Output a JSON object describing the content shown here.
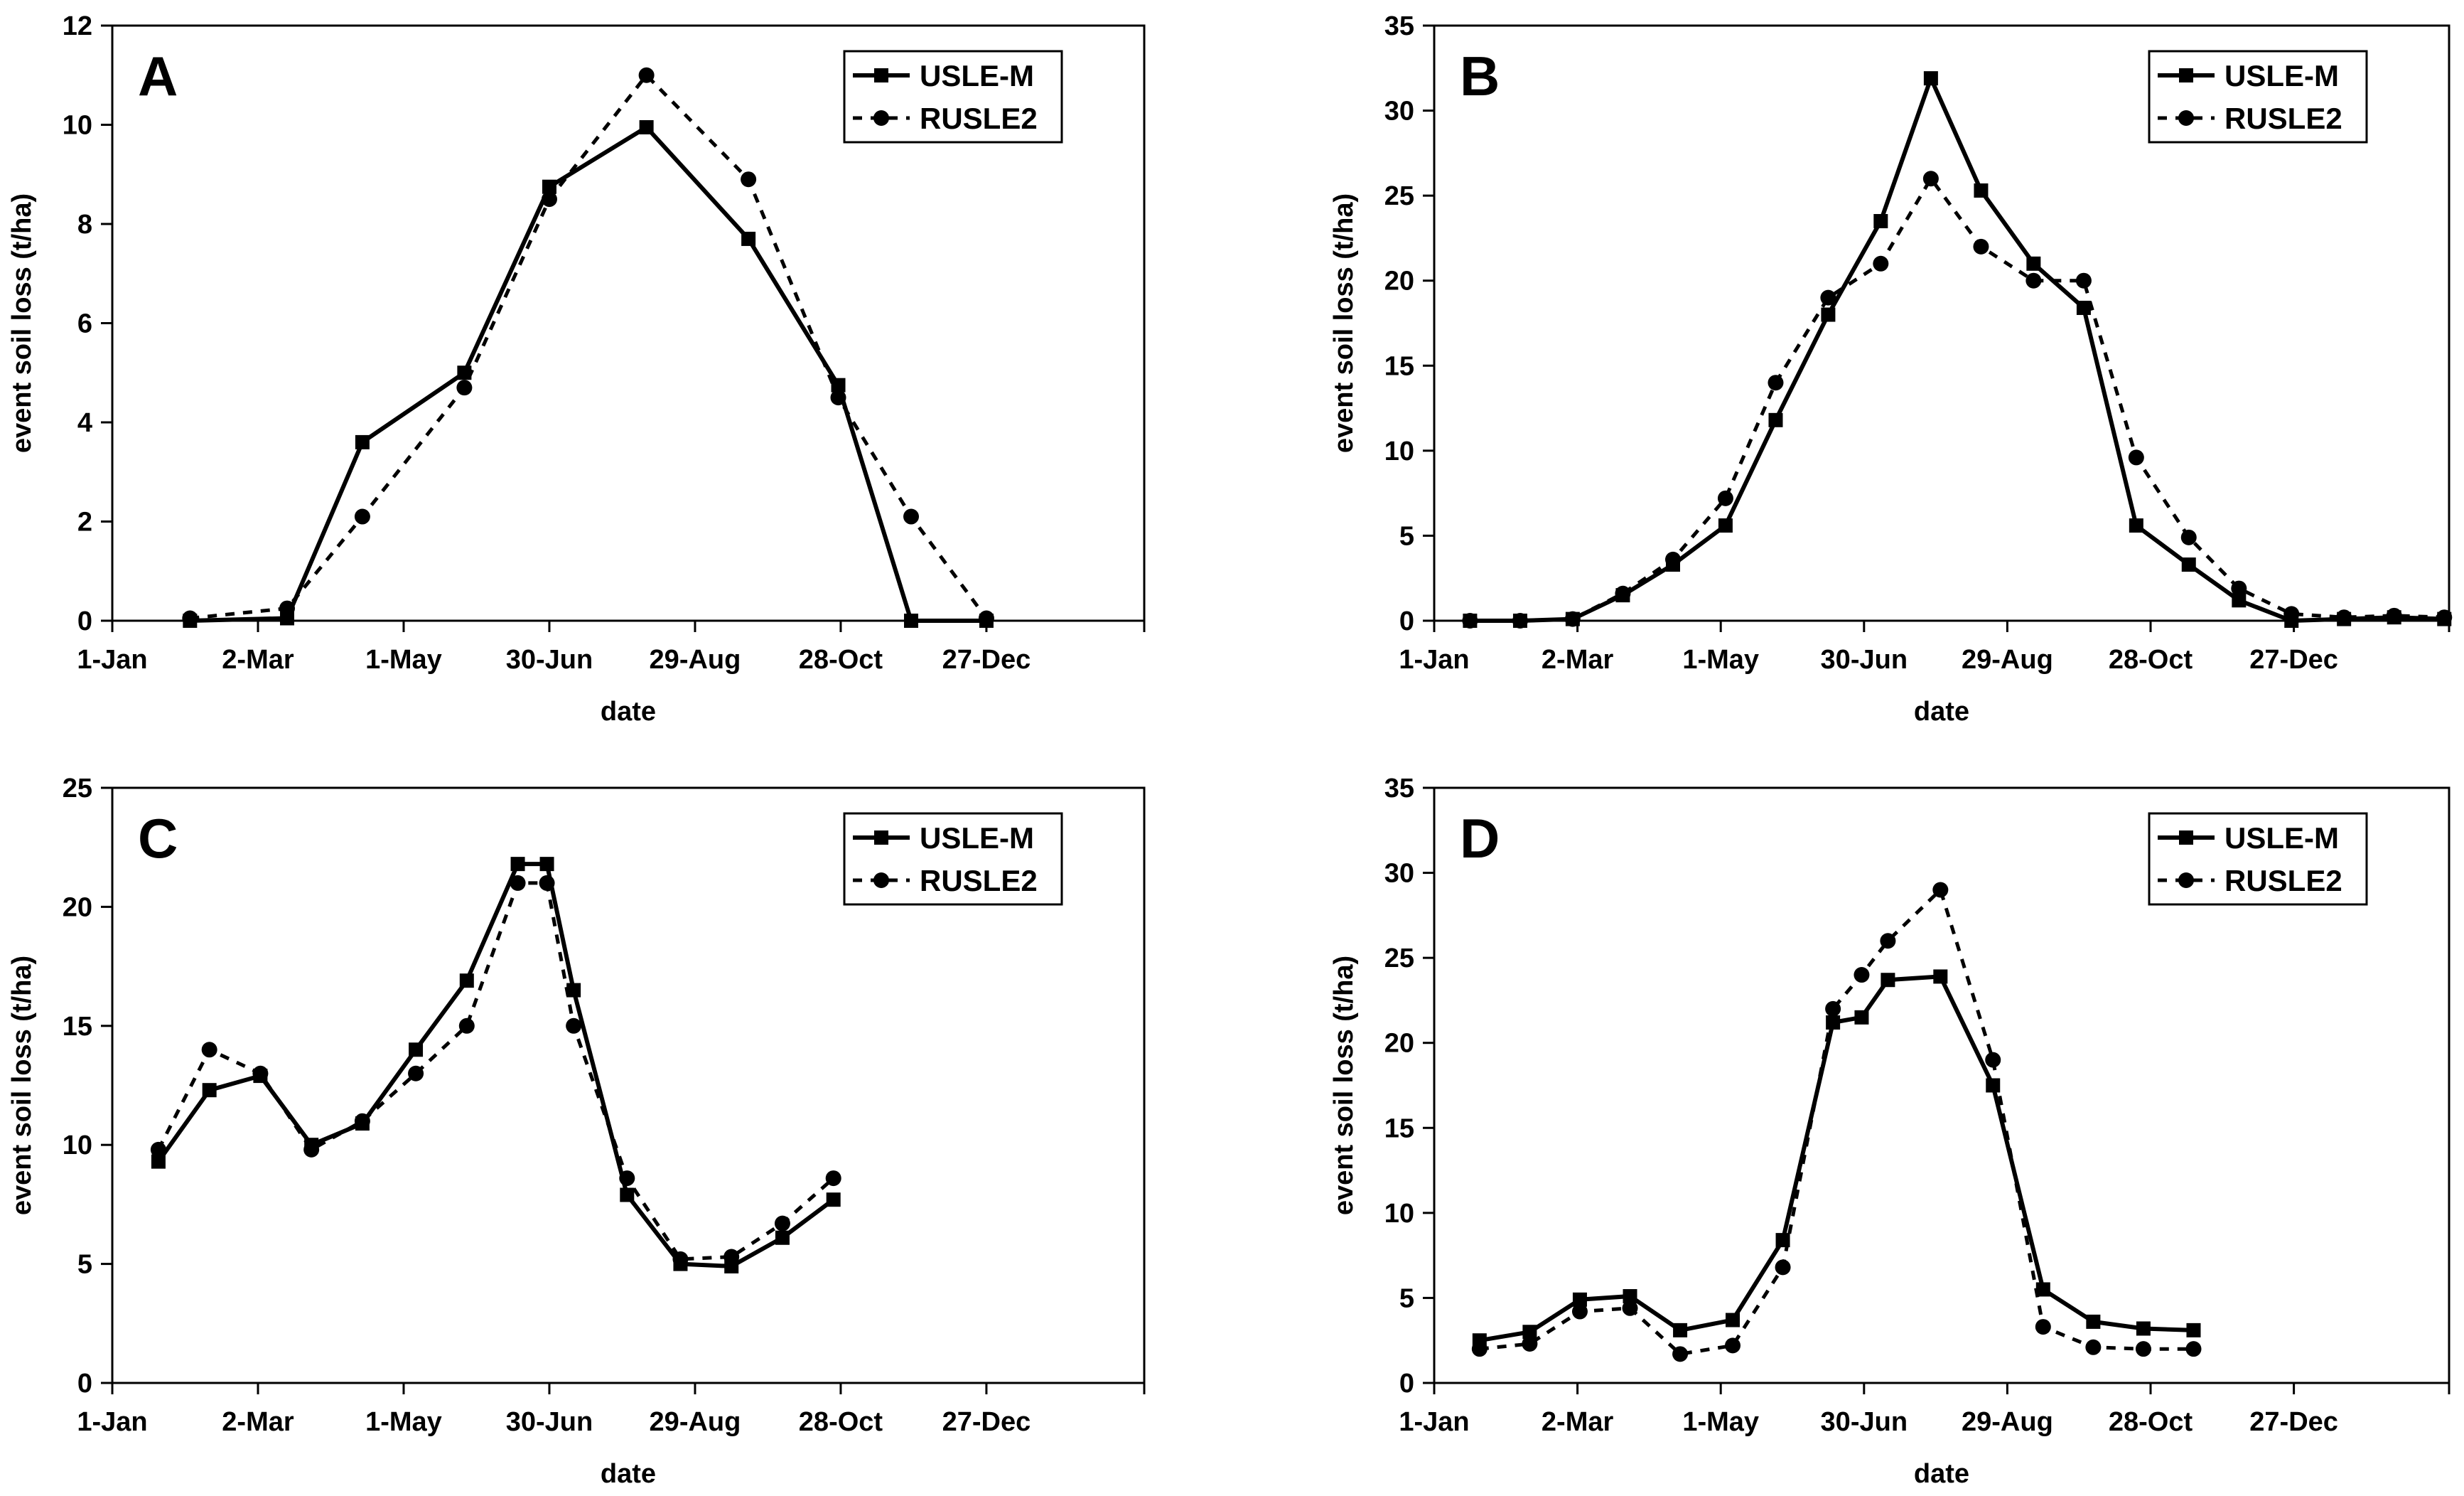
{
  "chart_data": [
    {
      "panel": "A",
      "type": "line",
      "xlabel": "date",
      "ylabel": "event soil loss (t/ha)",
      "ylim": [
        0,
        12
      ],
      "yticks": [
        0,
        2,
        4,
        6,
        8,
        10,
        12
      ],
      "xlim_days": [
        1,
        426
      ],
      "xticks": [
        {
          "label": "1-Jan",
          "day": 1
        },
        {
          "label": "2-Mar",
          "day": 61
        },
        {
          "label": "1-May",
          "day": 121
        },
        {
          "label": "30-Jun",
          "day": 181
        },
        {
          "label": "29-Aug",
          "day": 241
        },
        {
          "label": "28-Oct",
          "day": 301
        },
        {
          "label": "27-Dec",
          "day": 361
        }
      ],
      "legend_position": "top-right",
      "series": [
        {
          "name": "USLE-M",
          "marker": "square",
          "style": "solid",
          "x": [
            33,
            73,
            104,
            146,
            181,
            221,
            263,
            300,
            330,
            361
          ],
          "y": [
            0,
            0.05,
            3.6,
            5.0,
            8.75,
            9.95,
            7.7,
            4.75,
            0,
            0
          ]
        },
        {
          "name": "RUSLE2",
          "marker": "circle",
          "style": "dashed",
          "x": [
            33,
            73,
            104,
            146,
            181,
            221,
            263,
            300,
            330,
            361
          ],
          "y": [
            0.05,
            0.25,
            2.1,
            4.7,
            8.5,
            11.0,
            8.9,
            4.5,
            2.1,
            0.05
          ]
        }
      ]
    },
    {
      "panel": "B",
      "type": "line",
      "xlabel": "date",
      "ylabel": "event soil loss (t/ha)",
      "ylim": [
        0,
        35
      ],
      "yticks": [
        0,
        5,
        10,
        15,
        20,
        25,
        30,
        35
      ],
      "xlim_days": [
        1,
        426
      ],
      "xticks": [
        {
          "label": "1-Jan",
          "day": 1
        },
        {
          "label": "2-Mar",
          "day": 61
        },
        {
          "label": "1-May",
          "day": 121
        },
        {
          "label": "30-Jun",
          "day": 181
        },
        {
          "label": "29-Aug",
          "day": 241
        },
        {
          "label": "28-Oct",
          "day": 301
        },
        {
          "label": "27-Dec",
          "day": 361
        }
      ],
      "legend_position": "top-right",
      "series": [
        {
          "name": "USLE-M",
          "marker": "square",
          "style": "solid",
          "x": [
            16,
            37,
            59,
            80,
            101,
            123,
            144,
            166,
            188,
            209,
            230,
            252,
            273,
            295,
            317,
            338,
            360,
            382,
            403,
            424
          ],
          "y": [
            0,
            0,
            0.1,
            1.5,
            3.3,
            5.6,
            11.8,
            18.0,
            23.5,
            31.9,
            25.3,
            21.0,
            18.4,
            5.6,
            3.3,
            1.2,
            0,
            0.1,
            0.2,
            0.1
          ]
        },
        {
          "name": "RUSLE2",
          "marker": "circle",
          "style": "dashed",
          "x": [
            16,
            37,
            59,
            80,
            101,
            123,
            144,
            166,
            188,
            209,
            230,
            252,
            273,
            295,
            317,
            338,
            360,
            382,
            403,
            424
          ],
          "y": [
            0,
            0,
            0.1,
            1.6,
            3.6,
            7.2,
            14.0,
            19.0,
            21.0,
            26.0,
            22.0,
            20.0,
            20.0,
            9.6,
            4.9,
            1.9,
            0.4,
            0.2,
            0.3,
            0.2
          ]
        }
      ]
    },
    {
      "panel": "C",
      "type": "line",
      "xlabel": "date",
      "ylabel": "event soil loss (t/ha)",
      "ylim": [
        0,
        25
      ],
      "yticks": [
        0,
        5,
        10,
        15,
        20,
        25
      ],
      "xlim_days": [
        1,
        426
      ],
      "xticks": [
        {
          "label": "1-Jan",
          "day": 1
        },
        {
          "label": "2-Mar",
          "day": 61
        },
        {
          "label": "1-May",
          "day": 121
        },
        {
          "label": "30-Jun",
          "day": 181
        },
        {
          "label": "29-Aug",
          "day": 241
        },
        {
          "label": "28-Oct",
          "day": 301
        },
        {
          "label": "27-Dec",
          "day": 361
        }
      ],
      "legend_position": "top-right",
      "series": [
        {
          "name": "USLE-M",
          "marker": "square",
          "style": "solid",
          "x": [
            20,
            41,
            62,
            83,
            104,
            126,
            147,
            168,
            180,
            191,
            213,
            235,
            256,
            277,
            298
          ],
          "y": [
            9.3,
            12.3,
            12.9,
            10.0,
            10.9,
            14.0,
            16.9,
            21.8,
            21.8,
            16.5,
            7.9,
            5.0,
            4.9,
            6.1,
            7.7
          ]
        },
        {
          "name": "RUSLE2",
          "marker": "circle",
          "style": "dashed",
          "x": [
            20,
            41,
            62,
            83,
            104,
            126,
            147,
            168,
            180,
            191,
            213,
            235,
            256,
            277,
            298
          ],
          "y": [
            9.8,
            14.0,
            13.0,
            9.8,
            11.0,
            13.0,
            15.0,
            21.0,
            21.0,
            15.0,
            8.6,
            5.2,
            5.3,
            6.7,
            8.6
          ]
        }
      ]
    },
    {
      "panel": "D",
      "type": "line",
      "xlabel": "date",
      "ylabel": "event soil loss (t/ha)",
      "ylim": [
        0,
        35
      ],
      "yticks": [
        0,
        5,
        10,
        15,
        20,
        25,
        30,
        35
      ],
      "xlim_days": [
        1,
        426
      ],
      "xticks": [
        {
          "label": "1-Jan",
          "day": 1
        },
        {
          "label": "2-Mar",
          "day": 61
        },
        {
          "label": "1-May",
          "day": 121
        },
        {
          "label": "30-Jun",
          "day": 181
        },
        {
          "label": "29-Aug",
          "day": 241
        },
        {
          "label": "28-Oct",
          "day": 301
        },
        {
          "label": "27-Dec",
          "day": 361
        }
      ],
      "legend_position": "top-right",
      "series": [
        {
          "name": "USLE-M",
          "marker": "square",
          "style": "solid",
          "x": [
            20,
            41,
            62,
            83,
            104,
            126,
            147,
            168,
            180,
            191,
            213,
            235,
            256,
            277,
            298,
            319
          ],
          "y": [
            2.5,
            3.0,
            4.9,
            5.1,
            3.1,
            3.7,
            8.4,
            21.2,
            21.5,
            23.7,
            23.9,
            17.5,
            5.5,
            3.6,
            3.2,
            3.1
          ]
        },
        {
          "name": "RUSLE2",
          "marker": "circle",
          "style": "dashed",
          "x": [
            20,
            41,
            62,
            83,
            104,
            126,
            147,
            168,
            180,
            191,
            213,
            235,
            256,
            277,
            298,
            319
          ],
          "y": [
            2.0,
            2.3,
            4.2,
            4.4,
            1.7,
            2.2,
            6.8,
            22.0,
            24.0,
            26.0,
            29.0,
            19.0,
            3.3,
            2.1,
            2.0,
            2.0
          ]
        }
      ]
    }
  ]
}
